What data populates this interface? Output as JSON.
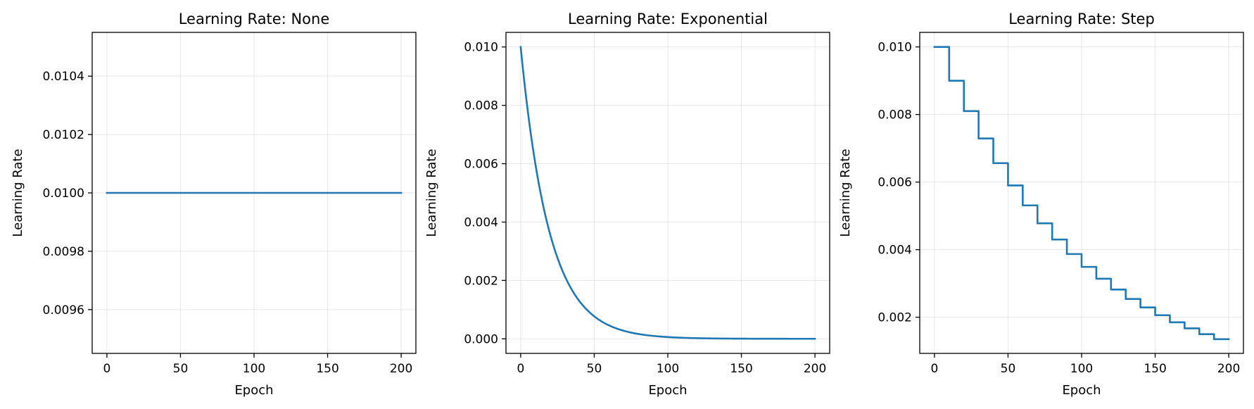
{
  "chart_data": [
    {
      "type": "line",
      "title": "Learning Rate: None",
      "xlabel": "Epoch",
      "ylabel": "Learning Rate",
      "xlim": [
        -10,
        210
      ],
      "ylim": [
        0.00945,
        0.01055
      ],
      "xticks": [
        0,
        50,
        100,
        150,
        200
      ],
      "xtick_labels": [
        "0",
        "50",
        "100",
        "150",
        "200"
      ],
      "yticks": [
        0.0096,
        0.0098,
        0.01,
        0.0102,
        0.0104
      ],
      "ytick_labels": [
        "0.0096",
        "0.0098",
        "0.0100",
        "0.0102",
        "0.0104"
      ],
      "grid": true,
      "schedule": "constant",
      "series": [
        {
          "x": [
            0,
            200
          ],
          "values": [
            0.01,
            0.01
          ],
          "color": "#1f77b4"
        }
      ]
    },
    {
      "type": "line",
      "title": "Learning Rate: Exponential",
      "xlabel": "Epoch",
      "ylabel": "Learning Rate",
      "xlim": [
        -10,
        210
      ],
      "ylim": [
        -0.0005,
        0.0105
      ],
      "xticks": [
        0,
        50,
        100,
        150,
        200
      ],
      "xtick_labels": [
        "0",
        "50",
        "100",
        "150",
        "200"
      ],
      "yticks": [
        0.0,
        0.002,
        0.004,
        0.006,
        0.008,
        0.01
      ],
      "ytick_labels": [
        "0.000",
        "0.002",
        "0.004",
        "0.006",
        "0.008",
        "0.010"
      ],
      "grid": true,
      "schedule": "exponential",
      "series": [
        {
          "x": [
            0,
            5,
            10,
            15,
            20,
            25,
            30,
            35,
            40,
            50,
            60,
            70,
            80,
            90,
            100,
            120,
            140,
            160,
            180,
            200
          ],
          "values": [
            0.01,
            0.0077,
            0.006,
            0.0046,
            0.0036,
            0.0028,
            0.0021,
            0.0016,
            0.0013,
            0.00077,
            0.00046,
            0.00028,
            0.00017,
            0.0001,
            6e-05,
            2e-05,
            1e-05,
            0.0,
            0.0,
            0.0
          ],
          "color": "#1f77b4"
        }
      ]
    },
    {
      "type": "line",
      "title": "Learning Rate: Step",
      "xlabel": "Epoch",
      "ylabel": "Learning Rate",
      "xlim": [
        -10,
        210
      ],
      "ylim": [
        0.00093,
        0.01043
      ],
      "xticks": [
        0,
        50,
        100,
        150,
        200
      ],
      "xtick_labels": [
        "0",
        "50",
        "100",
        "150",
        "200"
      ],
      "yticks": [
        0.002,
        0.004,
        0.006,
        0.008,
        0.01
      ],
      "ytick_labels": [
        "0.002",
        "0.004",
        "0.006",
        "0.008",
        "0.010"
      ],
      "grid": true,
      "schedule": "step",
      "step_size": 10,
      "series": [
        {
          "x": [
            0,
            10,
            20,
            30,
            40,
            50,
            60,
            70,
            80,
            90,
            100,
            110,
            120,
            130,
            140,
            150,
            160,
            170,
            180,
            190,
            200
          ],
          "values": [
            0.01,
            0.009,
            0.0081,
            0.00729,
            0.00656,
            0.0059,
            0.00531,
            0.00478,
            0.0043,
            0.00387,
            0.00349,
            0.00314,
            0.00282,
            0.00254,
            0.00229,
            0.00206,
            0.00185,
            0.00167,
            0.0015,
            0.00135,
            0.00135
          ],
          "color": "#1f77b4"
        }
      ]
    }
  ]
}
